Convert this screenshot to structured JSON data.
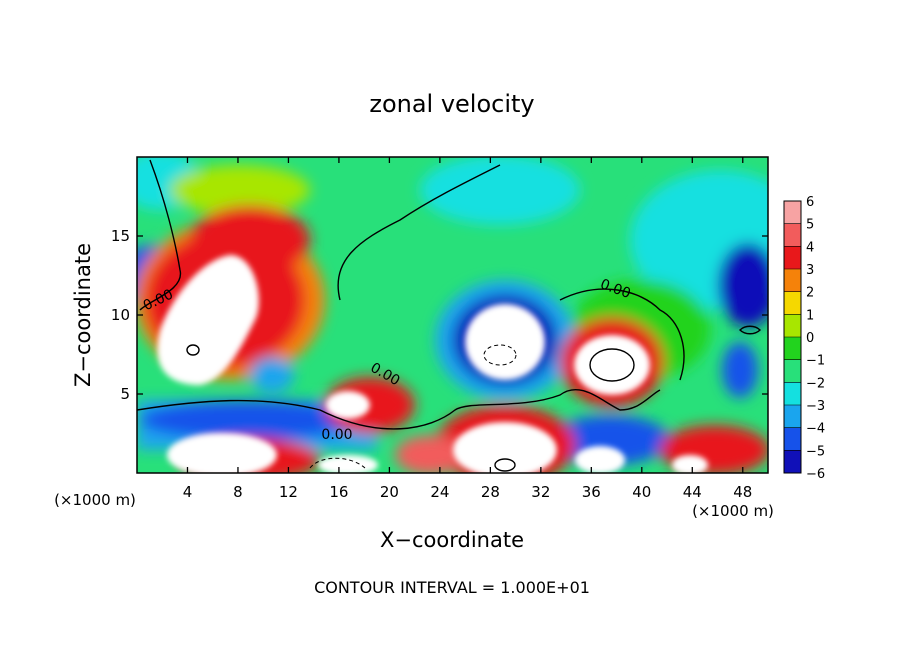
{
  "chart_data": {
    "type": "heatmap",
    "title": "zonal velocity",
    "xlabel": "X−coordinate",
    "ylabel": "Z−coordinate",
    "x_unit_left": "(×1000 m)",
    "x_unit_right": "(×1000 m)",
    "footer": "CONTOUR INTERVAL = 1.000E+01",
    "xlim": [
      0,
      50
    ],
    "ylim": [
      0,
      20
    ],
    "x_ticks": [
      4,
      8,
      12,
      16,
      20,
      24,
      28,
      32,
      36,
      40,
      44,
      48
    ],
    "y_ticks": [
      5,
      10,
      15
    ],
    "colorbar": {
      "levels": [
        6,
        5,
        4,
        3,
        2,
        1,
        0,
        -1,
        -2,
        -3,
        -4,
        -5,
        -6
      ],
      "colors": [
        "#f7a3a3",
        "#f25c5c",
        "#e8181b",
        "#f5820a",
        "#f5d800",
        "#a8e600",
        "#22d31e",
        "#28e07a",
        "#14e0e0",
        "#1aa5ee",
        "#1652ea",
        "#1010b8",
        "#7a10a0"
      ]
    },
    "contour_labels": [
      "0.00",
      "0.00",
      "0.00",
      "0.00"
    ],
    "grid": false,
    "legend": "colorbar-right"
  }
}
